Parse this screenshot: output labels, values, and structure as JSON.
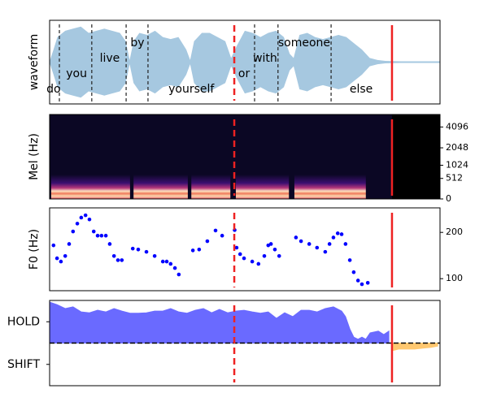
{
  "xlim": [
    0,
    100
  ],
  "vlines": [
    {
      "x": 47.3,
      "style": "dashed",
      "color": "#ee2222"
    },
    {
      "x": 87.7,
      "style": "solid",
      "color": "#ee2222"
    }
  ],
  "chart_data": [
    {
      "type": "waveform",
      "ylabel": "waveform",
      "ylim": [
        -1,
        1
      ],
      "color": "#a6c8e0",
      "x": [
        0,
        1,
        2,
        4,
        6,
        8,
        10,
        12,
        14,
        16,
        18,
        19.5,
        20.5,
        21.5,
        23,
        25,
        27,
        29,
        31,
        33,
        35,
        36,
        37,
        39,
        41,
        43,
        45,
        46.5,
        48,
        50,
        52,
        54,
        56,
        58,
        60,
        61.5,
        62.5,
        64,
        66,
        68,
        70,
        72,
        74,
        76,
        78,
        80,
        82,
        84,
        86,
        90,
        100
      ],
      "values": [
        0.02,
        0.3,
        0.6,
        0.75,
        0.8,
        0.85,
        0.7,
        0.75,
        0.8,
        0.75,
        0.7,
        0.5,
        0.05,
        0.5,
        0.7,
        0.65,
        0.75,
        0.6,
        0.55,
        0.6,
        0.3,
        0.05,
        0.5,
        0.7,
        0.7,
        0.6,
        0.5,
        0.1,
        0.4,
        0.75,
        0.7,
        0.6,
        0.7,
        0.75,
        0.6,
        0.2,
        0.1,
        0.65,
        0.7,
        0.6,
        0.55,
        0.6,
        0.65,
        0.6,
        0.45,
        0.3,
        0.1,
        0.05,
        0.03,
        0.02,
        0.02
      ],
      "boundaries": [
        2.5,
        10.8,
        19.6,
        25.2,
        52.5,
        58.5,
        72.1
      ],
      "words": [
        {
          "text": "do",
          "x": 1.0
        },
        {
          "text": "you",
          "x": 6.9
        },
        {
          "text": "live",
          "x": 15.4
        },
        {
          "text": "by",
          "x": 22.5
        },
        {
          "text": "yourself",
          "x": 36.3
        },
        {
          "text": "or",
          "x": 49.8
        },
        {
          "text": "with",
          "x": 55.2
        },
        {
          "text": "someone",
          "x": 65.2
        },
        {
          "text": "else",
          "x": 79.8
        }
      ]
    },
    {
      "type": "spectrogram",
      "ylabel": "Mel (Hz)",
      "yscale": "mel",
      "yaxis_side": "right",
      "ylim": [
        0,
        6000
      ],
      "yticks": [
        0,
        512,
        1024,
        2048,
        4096
      ],
      "segments": [
        [
          0.4,
          20.6
        ],
        [
          21.5,
          35.4
        ],
        [
          36.3,
          46.3
        ],
        [
          47.7,
          61.3
        ],
        [
          62.7,
          81
        ]
      ]
    },
    {
      "type": "scatter",
      "ylabel": "F0 (Hz)",
      "yaxis_side": "right",
      "ylim": [
        74,
        253
      ],
      "yticks": [
        100,
        200
      ],
      "color": "#0000ff",
      "x": [
        1.0,
        1.9,
        2.9,
        4.0,
        5.0,
        6.0,
        7.1,
        8.1,
        9.2,
        10.2,
        11.3,
        12.3,
        13.3,
        14.4,
        15.4,
        16.5,
        17.5,
        18.5,
        21.3,
        22.7,
        24.8,
        26.9,
        29.0,
        30.0,
        31.0,
        32.1,
        33.1,
        36.7,
        38.3,
        40.4,
        42.5,
        44.2,
        47.4,
        47.9,
        48.8,
        49.8,
        51.9,
        53.5,
        55.0,
        56.0,
        56.7,
        57.7,
        58.8,
        63.1,
        64.4,
        66.5,
        68.5,
        70.6,
        71.7,
        72.7,
        73.8,
        74.8,
        75.8,
        76.9,
        77.9,
        79.0,
        80.0,
        81.5
      ],
      "values": [
        172,
        144,
        137,
        149,
        175,
        202,
        219,
        232,
        237,
        228,
        202,
        193,
        193,
        193,
        175,
        149,
        140,
        140,
        165,
        163,
        158,
        149,
        137,
        137,
        132,
        123,
        109,
        161,
        163,
        181,
        204,
        193,
        205,
        167,
        153,
        144,
        137,
        132,
        149,
        172,
        175,
        163,
        149,
        189,
        181,
        175,
        167,
        158,
        175,
        189,
        198,
        196,
        175,
        140,
        114,
        96,
        88,
        91
      ]
    },
    {
      "type": "area",
      "ylim": [
        -1,
        1
      ],
      "yticks": [
        {
          "value": 0.5,
          "label": "HOLD"
        },
        {
          "value": -0.5,
          "label": "SHIFT"
        }
      ],
      "threshold": 0,
      "series": [
        {
          "color": "#6a6aff",
          "x": [
            0,
            1.9,
            4.0,
            6.0,
            8.1,
            10.2,
            12.3,
            14.4,
            16.5,
            18.5,
            20.6,
            22.7,
            24.8,
            26.9,
            29.0,
            31.0,
            33.1,
            35.2,
            37.3,
            39.4,
            41.5,
            43.5,
            45.6,
            47.7,
            49.8,
            51.9,
            54.0,
            56.0,
            58.1,
            60.2,
            62.3,
            64.4,
            66.5,
            68.5,
            70.6,
            72.7,
            74.8,
            75.8,
            76.9,
            77.9,
            79.0,
            80.0,
            81.0,
            82.1,
            84.2,
            85.6,
            86.9
          ],
          "values": [
            0.96,
            0.9,
            0.81,
            0.85,
            0.73,
            0.71,
            0.77,
            0.73,
            0.81,
            0.75,
            0.7,
            0.7,
            0.71,
            0.75,
            0.75,
            0.81,
            0.73,
            0.7,
            0.77,
            0.81,
            0.71,
            0.79,
            0.71,
            0.75,
            0.77,
            0.73,
            0.7,
            0.73,
            0.58,
            0.71,
            0.62,
            0.77,
            0.77,
            0.73,
            0.81,
            0.85,
            0.75,
            0.62,
            0.33,
            0.14,
            0.09,
            0.14,
            0.09,
            0.24,
            0.28,
            0.2,
            0.28
          ]
        },
        {
          "color": "#ffc870",
          "x": [
            87.7,
            89.4,
            91.5,
            93.5,
            95.6,
            97.7,
            99.4
          ],
          "values": [
            -0.18,
            -0.14,
            -0.14,
            -0.14,
            -0.12,
            -0.1,
            -0.07
          ]
        }
      ]
    }
  ]
}
